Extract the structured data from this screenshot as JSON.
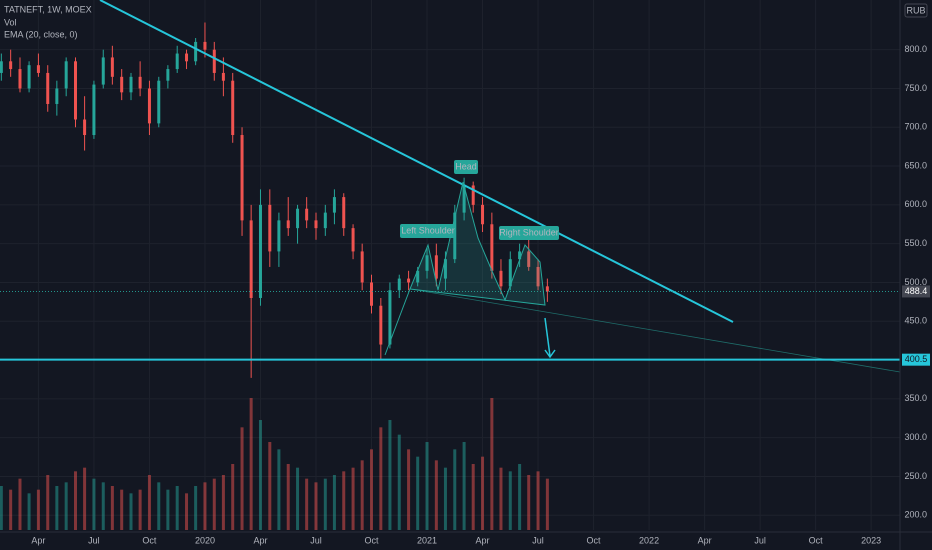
{
  "chart_data": {
    "type": "candlestick",
    "symbol": "TATNEFT, 1W, MOEX",
    "indicators": [
      "Vol",
      "EMA (20, close, 0)"
    ],
    "currency": "RUB",
    "annotations": {
      "head": "Head",
      "left_shoulder": "Left Shoulder",
      "right_shoulder": "Right Shoulder"
    },
    "support": 400.5,
    "up_color": "#26a69a",
    "down_color": "#ef5350",
    "line_color": "#26c6da",
    "x": [
      2019.083,
      2019.125,
      2019.167,
      2019.208,
      2019.25,
      2019.292,
      2019.333,
      2019.375,
      2019.417,
      2019.458,
      2019.5,
      2019.542,
      2019.583,
      2019.625,
      2019.667,
      2019.708,
      2019.75,
      2019.792,
      2019.833,
      2019.875,
      2019.917,
      2019.958,
      2020.0,
      2020.042,
      2020.083,
      2020.125,
      2020.167,
      2020.208,
      2020.25,
      2020.292,
      2020.333,
      2020.375,
      2020.417,
      2020.458,
      2020.5,
      2020.542,
      2020.583,
      2020.625,
      2020.667,
      2020.708,
      2020.75,
      2020.792,
      2020.833,
      2020.875,
      2020.917,
      2020.958,
      2021.0,
      2021.042,
      2021.083,
      2021.125,
      2021.167,
      2021.208,
      2021.25,
      2021.292,
      2021.333,
      2021.375,
      2021.417,
      2021.458,
      2021.5,
      2021.542
    ],
    "open": [
      770,
      785,
      775,
      750,
      780,
      770,
      730,
      750,
      785,
      710,
      690,
      755,
      790,
      765,
      745,
      765,
      750,
      705,
      760,
      775,
      795,
      785,
      810,
      800,
      770,
      760,
      690,
      580,
      480,
      600,
      540,
      580,
      570,
      595,
      580,
      570,
      590,
      610,
      570,
      540,
      500,
      470,
      420,
      490,
      505,
      500,
      515,
      535,
      505,
      530,
      590,
      625,
      600,
      575,
      515,
      495,
      530,
      540,
      520,
      495
    ],
    "high": [
      795,
      800,
      790,
      785,
      795,
      780,
      760,
      790,
      790,
      740,
      760,
      800,
      805,
      775,
      770,
      785,
      760,
      765,
      780,
      805,
      800,
      815,
      835,
      810,
      790,
      770,
      700,
      600,
      620,
      620,
      590,
      610,
      600,
      610,
      590,
      600,
      620,
      615,
      575,
      550,
      510,
      480,
      500,
      510,
      515,
      520,
      545,
      550,
      540,
      600,
      635,
      630,
      610,
      590,
      530,
      540,
      550,
      555,
      530,
      505
    ],
    "low": [
      760,
      765,
      745,
      745,
      765,
      720,
      715,
      740,
      700,
      670,
      685,
      750,
      755,
      735,
      735,
      740,
      690,
      700,
      750,
      770,
      775,
      780,
      790,
      760,
      740,
      680,
      560,
      377,
      470,
      520,
      520,
      560,
      550,
      570,
      555,
      560,
      575,
      560,
      530,
      490,
      460,
      400,
      415,
      480,
      490,
      495,
      505,
      495,
      490,
      525,
      580,
      590,
      565,
      505,
      485,
      490,
      520,
      515,
      490,
      475
    ],
    "close": [
      785,
      775,
      750,
      780,
      770,
      730,
      750,
      785,
      710,
      690,
      755,
      790,
      765,
      745,
      765,
      750,
      705,
      760,
      775,
      795,
      785,
      810,
      800,
      770,
      760,
      690,
      580,
      480,
      600,
      540,
      580,
      570,
      595,
      580,
      570,
      590,
      610,
      570,
      540,
      500,
      470,
      420,
      490,
      505,
      500,
      515,
      535,
      505,
      530,
      590,
      625,
      600,
      575,
      515,
      495,
      530,
      540,
      520,
      495,
      488.4
    ],
    "volume": [
      60,
      55,
      70,
      50,
      55,
      75,
      60,
      65,
      80,
      85,
      70,
      65,
      60,
      55,
      50,
      55,
      75,
      65,
      55,
      60,
      50,
      60,
      65,
      70,
      75,
      90,
      140,
      180,
      150,
      120,
      110,
      90,
      85,
      70,
      65,
      70,
      75,
      80,
      85,
      95,
      110,
      140,
      150,
      130,
      110,
      100,
      120,
      95,
      85,
      110,
      120,
      90,
      100,
      180,
      85,
      80,
      90,
      75,
      80,
      70
    ],
    "vlim": [
      0,
      240
    ],
    "xlim": [
      2019.077,
      2023.13
    ],
    "ylim": [
      181,
      864
    ],
    "xticks": [
      {
        "value": 2019.25,
        "label": "Apr"
      },
      {
        "value": 2019.5,
        "label": "Jul"
      },
      {
        "value": 2019.75,
        "label": "Oct"
      },
      {
        "value": 2020,
        "label": "2020"
      },
      {
        "value": 2020.25,
        "label": "Apr"
      },
      {
        "value": 2020.5,
        "label": "Jul"
      },
      {
        "value": 2020.75,
        "label": "Oct"
      },
      {
        "value": 2021,
        "label": "2021"
      },
      {
        "value": 2021.25,
        "label": "Apr"
      },
      {
        "value": 2021.5,
        "label": "Jul"
      },
      {
        "value": 2021.75,
        "label": "Oct"
      },
      {
        "value": 2022,
        "label": "2022"
      },
      {
        "value": 2022.25,
        "label": "Apr"
      },
      {
        "value": 2022.5,
        "label": "Jul"
      },
      {
        "value": 2022.75,
        "label": "Oct"
      },
      {
        "value": 2023,
        "label": "2023"
      }
    ],
    "yticks": [
      {
        "value": 200,
        "label": "200.0"
      },
      {
        "value": 250,
        "label": "250.0"
      },
      {
        "value": 300,
        "label": "300.0"
      },
      {
        "value": 350,
        "label": "350.0"
      },
      {
        "value": 450,
        "label": "450.0"
      },
      {
        "value": 500,
        "label": "500.0"
      },
      {
        "value": 550,
        "label": "550.0"
      },
      {
        "value": 600,
        "label": "600.0"
      },
      {
        "value": 650,
        "label": "650.0"
      },
      {
        "value": 700,
        "label": "700.0"
      },
      {
        "value": 750,
        "label": "750.0"
      },
      {
        "value": 800,
        "label": "800.0"
      }
    ],
    "grid": true
  }
}
